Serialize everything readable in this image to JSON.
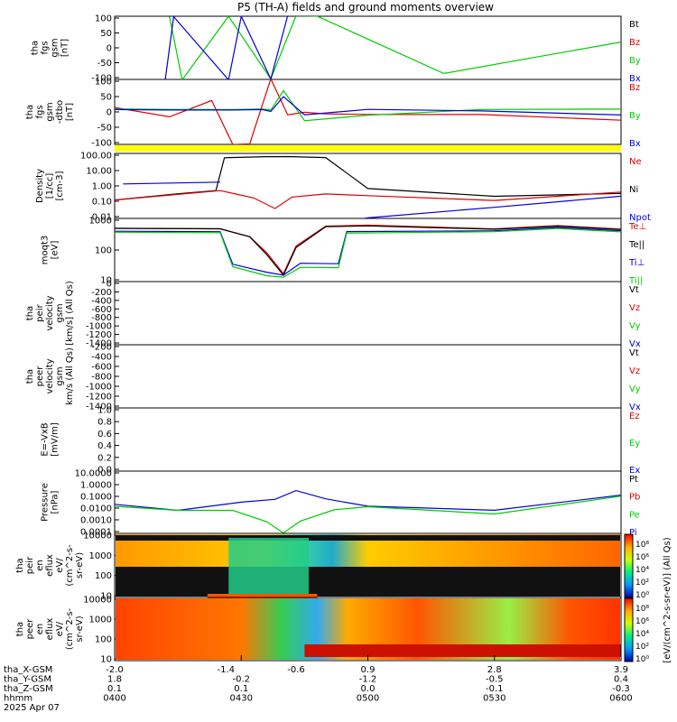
{
  "title": "P5 (TH-A) fields and ground moments overview",
  "colors": {
    "black": "#000000",
    "red": "#dd0000",
    "green": "#00cc00",
    "blue": "#0000dd",
    "yellow": "#ffff00"
  },
  "panels": [
    {
      "key": "p1",
      "ylabel": [
        "tha",
        "fgs",
        "gsm",
        "[nT]"
      ],
      "ticks": [
        "100",
        "50",
        "0",
        "-50",
        "-100"
      ],
      "legend": [
        [
          "Bt",
          "black"
        ],
        [
          "Bz",
          "red"
        ],
        [
          "By",
          "green"
        ],
        [
          "Bx",
          "blue"
        ]
      ]
    },
    {
      "key": "p2",
      "ylabel": [
        "tha",
        "fgs",
        "gsm",
        "-dtbo",
        "[nT]"
      ],
      "ticks": [
        "100",
        "50",
        "0",
        "-50",
        "-100"
      ],
      "legend": [
        [
          "Bz",
          "red"
        ],
        [
          "By",
          "green"
        ],
        [
          "Bx",
          "blue"
        ]
      ]
    },
    {
      "key": "p3",
      "ylabel": [
        "Density",
        "[1/cc]",
        "[cm-3]"
      ],
      "ticks": [
        "100.00",
        "10.00",
        "1.00",
        "0.10",
        "0.01"
      ],
      "legend": [
        [
          "Ne",
          "red"
        ],
        [
          "Ni",
          "black"
        ],
        [
          "Npot",
          "blue"
        ]
      ]
    },
    {
      "key": "p4",
      "ylabel": [
        "moqt3",
        "[eV]"
      ],
      "ticks": [
        "1000",
        "100",
        "10"
      ],
      "legend": [
        [
          "Te⊥",
          "red"
        ],
        [
          "Te||",
          "black"
        ],
        [
          "Ti⊥",
          "blue"
        ],
        [
          "Ti||",
          "green"
        ]
      ]
    },
    {
      "key": "p5",
      "ylabel": [
        "tha",
        "peir",
        "velocity",
        "gsm",
        "[km/s] (All Qs)"
      ],
      "ticks": [
        "0",
        "-200",
        "-400",
        "-600",
        "-800",
        "-1000",
        "-1200",
        "-1400"
      ],
      "legend": [
        [
          "Vt",
          "black"
        ],
        [
          "Vz",
          "red"
        ],
        [
          "Vy",
          "green"
        ],
        [
          "Vx",
          "blue"
        ]
      ]
    },
    {
      "key": "p6",
      "ylabel": [
        "tha",
        "peer",
        "velocity",
        "gsm",
        "km/s (All Qs)"
      ],
      "ticks": [
        "-200",
        "-400",
        "-600",
        "-800",
        "-1000",
        "-1200",
        "-1400"
      ],
      "legend": [
        [
          "Vt",
          "black"
        ],
        [
          "Vz",
          "red"
        ],
        [
          "Vy",
          "green"
        ],
        [
          "Vx",
          "blue"
        ]
      ]
    },
    {
      "key": "p7",
      "ylabel": [
        "E=-VxB",
        "[mV/m]"
      ],
      "ticks": [
        "1.0",
        "0.8",
        "0.6",
        "0.4",
        "0.2",
        "0.0"
      ],
      "legend": [
        [
          "Ez",
          "red"
        ],
        [
          "Ey",
          "green"
        ],
        [
          "Ex",
          "blue"
        ]
      ]
    },
    {
      "key": "p8",
      "ylabel": [
        "Pressure",
        "[nPa]"
      ],
      "ticks": [
        "10.0000",
        "1.0000",
        "0.1000",
        "0.0100",
        "0.0010",
        "0.0001"
      ],
      "legend": [
        [
          "Pt",
          "black"
        ],
        [
          "Pb",
          "red"
        ],
        [
          "Pe",
          "green"
        ],
        [
          "Pi",
          "blue"
        ]
      ]
    },
    {
      "key": "p9",
      "ylabel": [
        "tha",
        "peir",
        "en",
        "eflux",
        "eV/",
        "(cm^2-s-",
        "sr-eV)"
      ],
      "ticks": [
        "10000",
        "1000",
        "100",
        "10"
      ],
      "legend": []
    },
    {
      "key": "p10",
      "ylabel": [
        "tha",
        "peer",
        "en",
        "eflux",
        "eV/",
        "(cm^2-s-",
        "sr-eV)"
      ],
      "ticks": [
        "10000",
        "1000",
        "100",
        "10"
      ],
      "legend": []
    }
  ],
  "colorbar": {
    "label": "[eV/(cm^2-s-sr-eV)] (All Qs)",
    "upper_ticks": [
      "10⁸",
      "10⁶",
      "10⁴",
      "10²",
      "10⁰"
    ],
    "lower_ticks": [
      "10⁸",
      "10⁶",
      "10⁴",
      "10²",
      "10⁰"
    ]
  },
  "xaxis": {
    "rows": [
      {
        "label": "tha_X-GSM",
        "values": [
          "-2.0",
          "-1.4",
          "-0.6",
          "0.9",
          "2.8",
          "3.9"
        ]
      },
      {
        "label": "tha_Y-GSM",
        "values": [
          "1.8",
          "-0.2",
          "-1.2",
          "-0.5",
          "0.4"
        ]
      },
      {
        "label": "tha_Z-GSM",
        "values": [
          "0.1",
          "0.1",
          "0.0",
          "-0.1",
          "-0.3"
        ]
      },
      {
        "label": "hhmm",
        "values": [
          "0400",
          "0430",
          "0500",
          "0530",
          "0600"
        ]
      }
    ],
    "date": "2025 Apr 07"
  },
  "chart_data": {
    "type": "line",
    "title": "P5 (TH-A) fields and ground moments overview",
    "x": [
      "0400",
      "0430",
      "0500",
      "0530",
      "0600"
    ],
    "xlim": [
      "0400",
      "0600"
    ],
    "panels": {
      "fgs_gsm": {
        "ylim": [
          -100,
          100
        ],
        "series": [
          {
            "name": "By",
            "x": [
              "0400",
              "0413",
              "0416",
              "0427",
              "0437",
              "0443",
              "0448",
              "0518",
              "0600"
            ],
            "values": [
              null,
              100,
              -100,
              100,
              -100,
              100,
              100,
              -80,
              20
            ]
          },
          {
            "name": "Bx",
            "x": [
              "0412",
              "0414",
              "0427",
              "0430",
              "0437",
              "0441"
            ],
            "values": [
              -100,
              100,
              -100,
              100,
              -100,
              100
            ]
          }
        ]
      },
      "fgs_gsm_dtbo": {
        "ylim": [
          -120,
          100
        ],
        "series": [
          {
            "name": "Bz",
            "x": [
              "0400",
              "0413",
              "0423",
              "0428",
              "0432",
              "0437",
              "0441",
              "0445",
              "0450",
              "0500",
              "0527",
              "0600"
            ],
            "values": [
              5,
              -25,
              30,
              -120,
              -120,
              100,
              -20,
              -10,
              -15,
              -18,
              -20,
              -40
            ]
          },
          {
            "name": "By",
            "x": [
              "0400",
              "0413",
              "0428",
              "0435",
              "0437",
              "0440",
              "0445",
              "0500",
              "0527",
              "0600"
            ],
            "values": [
              0,
              0,
              0,
              0,
              -5,
              60,
              -40,
              -20,
              0,
              0
            ]
          },
          {
            "name": "Bx",
            "x": [
              "0400",
              "0413",
              "0428",
              "0435",
              "0437",
              "0440",
              "0445",
              "0500",
              "0527",
              "0600"
            ],
            "values": [
              -2,
              -2,
              -2,
              -2,
              -10,
              40,
              -20,
              0,
              -5,
              -20
            ]
          }
        ]
      },
      "density": {
        "ylim": [
          0.005,
          200
        ],
        "scale": "log",
        "series": [
          {
            "name": "Ni",
            "x": [
              "0400",
              "0415",
              "0424",
              "0426",
              "0436",
              "0441",
              "0450",
              "0500",
              "0530",
              "0600"
            ],
            "values": [
              0.1,
              0.3,
              0.5,
              100,
              110,
              110,
              100,
              0.7,
              0.2,
              0.3
            ]
          },
          {
            "name": "Ne",
            "x": [
              "0400",
              "0425",
              "0433",
              "0438",
              "0442",
              "0450",
              "0500",
              "0530",
              "0600"
            ],
            "values": [
              0.1,
              0.5,
              0.15,
              0.025,
              0.15,
              0.25,
              0.2,
              0.1,
              0.4
            ]
          },
          {
            "name": "Npot",
            "x": [
              "0400",
              "0402",
              "0425",
              "0440",
              "0455",
              "0500",
              "0530",
              "0600"
            ],
            "values": [
              null,
              1.5,
              2,
              null,
              0.003,
              0.005,
              0.03,
              0.2
            ]
          }
        ]
      },
      "temperature": {
        "ylim": [
          5,
          8000
        ],
        "scale": "log",
        "series": [
          {
            "name": "Te⊥",
            "x": [
              "0400",
              "0425",
              "0432",
              "0436",
              "0440",
              "0443",
              "0450",
              "0500",
              "0530",
              "0545",
              "0600"
            ],
            "values": [
              2500,
              2500,
              1000,
              150,
              12,
              300,
              3200,
              3800,
              2500,
              3500,
              2200
            ]
          },
          {
            "name": "Te||",
            "x": [
              "0400",
              "0425",
              "0432",
              "0436",
              "0440",
              "0443",
              "0450",
              "0500",
              "0530",
              "0545",
              "0600"
            ],
            "values": [
              2500,
              2500,
              1000,
              120,
              10,
              250,
              3000,
              3500,
              2400,
              3300,
              2100
            ]
          },
          {
            "name": "Ti⊥",
            "x": [
              "0400",
              "0425",
              "0428",
              "0436",
              "0440",
              "0444",
              "0453",
              "0455",
              "0530",
              "0545",
              "0600"
            ],
            "values": [
              1800,
              1800,
              40,
              15,
              10,
              40,
              40,
              1800,
              2000,
              2800,
              1800
            ]
          },
          {
            "name": "Ti||",
            "x": [
              "0400",
              "0425",
              "0428",
              "0436",
              "0440",
              "0444",
              "0453",
              "0455",
              "0530",
              "0545",
              "0600"
            ],
            "values": [
              1600,
              1600,
              30,
              10,
              8,
              25,
              25,
              1500,
              1800,
              2500,
              1600
            ]
          }
        ]
      },
      "pressure": {
        "ylim": [
          0.0001,
          20
        ],
        "scale": "log",
        "series": [
          {
            "name": "Pi",
            "x": [
              "0400",
              "0415",
              "0430",
              "0438",
              "0443",
              "0450",
              "0500",
              "0530",
              "0600"
            ],
            "values": [
              0.03,
              0.01,
              0.05,
              0.08,
              0.4,
              0.08,
              0.02,
              0.01,
              0.2
            ]
          },
          {
            "name": "Pe",
            "x": [
              "0400",
              "0415",
              "0428",
              "0436",
              "0440",
              "0444",
              "0452",
              "0500",
              "0530",
              "0600"
            ],
            "values": [
              0.02,
              0.01,
              0.01,
              0.001,
              0.0001,
              0.001,
              0.01,
              0.02,
              0.005,
              0.15
            ]
          }
        ]
      }
    }
  }
}
